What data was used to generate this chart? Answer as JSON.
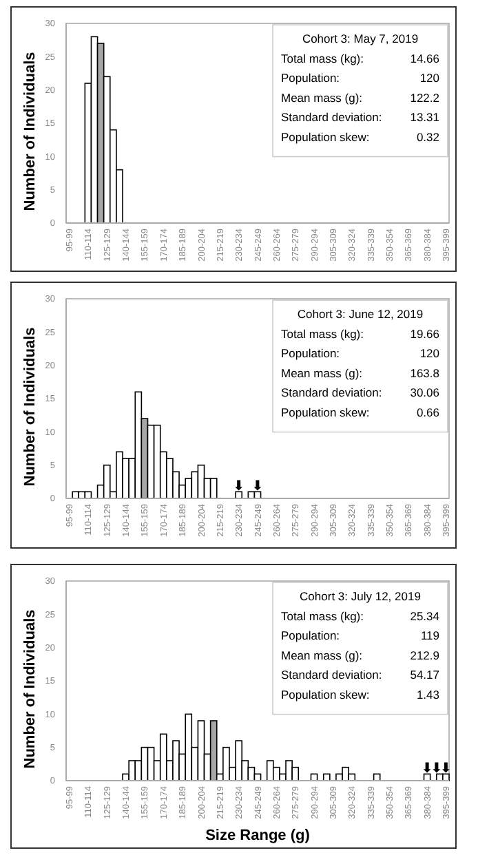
{
  "chart_data": [
    {
      "type": "bar",
      "title": "Cohort 3: May 7, 2019",
      "ylabel": "Number of Individuals",
      "categories": [
        "95-99",
        null,
        null,
        "110-114",
        null,
        null,
        "125-129",
        null,
        null,
        "140-144",
        null,
        null,
        "155-159",
        null,
        null,
        "170-174",
        null,
        null,
        "185-189",
        null,
        null,
        "200-204",
        null,
        null,
        "215-219",
        null,
        null,
        "230-234",
        null,
        null,
        "245-249",
        null,
        null,
        "260-264",
        null,
        null,
        "275-279",
        null,
        null,
        "290-294",
        null,
        null,
        "305-309",
        null,
        null,
        "320-324",
        null,
        null,
        "335-339",
        null,
        null,
        "350-354",
        null,
        null,
        "365-369",
        null,
        null,
        "380-384",
        null,
        null,
        "395-399"
      ],
      "values": [
        0,
        0,
        0,
        21,
        28,
        27,
        22,
        14,
        8,
        0,
        0,
        0,
        0,
        0,
        0,
        0,
        0,
        0,
        0,
        0,
        0,
        0,
        0,
        0,
        0,
        0,
        0,
        0,
        0,
        0,
        0,
        0,
        0,
        0,
        0,
        0,
        0,
        0,
        0,
        0,
        0,
        0,
        0,
        0,
        0,
        0,
        0,
        0,
        0,
        0,
        0,
        0,
        0,
        0,
        0,
        0,
        0,
        0,
        0,
        0,
        0
      ],
      "colors": [
        "#ffffff",
        "#ffffff",
        "#ffffff",
        "#ffffff",
        "#ffffff",
        "#a6a6a6",
        "#ffffff",
        "#ffffff",
        "#ffffff",
        "#ffffff",
        "#ffffff",
        "#ffffff",
        "#ffffff",
        "#ffffff",
        "#ffffff",
        "#ffffff",
        "#ffffff",
        "#ffffff",
        "#ffffff",
        "#ffffff",
        "#ffffff",
        "#ffffff",
        "#ffffff",
        "#ffffff",
        "#ffffff",
        "#ffffff",
        "#ffffff",
        "#ffffff",
        "#ffffff",
        "#ffffff",
        "#ffffff",
        "#ffffff",
        "#ffffff",
        "#ffffff",
        "#ffffff",
        "#ffffff",
        "#ffffff",
        "#ffffff",
        "#ffffff",
        "#ffffff",
        "#ffffff",
        "#ffffff",
        "#ffffff",
        "#ffffff",
        "#ffffff",
        "#ffffff",
        "#ffffff",
        "#ffffff",
        "#ffffff",
        "#ffffff",
        "#ffffff",
        "#ffffff",
        "#ffffff",
        "#ffffff",
        "#ffffff",
        "#ffffff",
        "#ffffff",
        "#ffffff",
        "#ffffff",
        "#ffffff",
        "#ffffff"
      ],
      "ylim": [
        0,
        30
      ],
      "yticks": [
        0,
        5,
        10,
        15,
        20,
        25,
        30
      ],
      "annotations": [
        "Total mass (kg):",
        "14.66",
        "Population:",
        "120",
        "Mean mass (g):",
        "122.2",
        "Standard deviation:",
        "13.31",
        "Population skew:",
        "0.32"
      ]
    },
    {
      "type": "bar",
      "title": "Cohort 3: June 12, 2019",
      "ylabel": "Number of Individuals",
      "categories": [
        "95-99",
        null,
        null,
        "110-114",
        null,
        null,
        "125-129",
        null,
        null,
        "140-144",
        null,
        null,
        "155-159",
        null,
        null,
        "170-174",
        null,
        null,
        "185-189",
        null,
        null,
        "200-204",
        null,
        null,
        "215-219",
        null,
        null,
        "230-234",
        null,
        null,
        "245-249",
        null,
        null,
        "260-264",
        null,
        null,
        "275-279",
        null,
        null,
        "290-294",
        null,
        null,
        "305-309",
        null,
        null,
        "320-324",
        null,
        null,
        "335-339",
        null,
        null,
        "350-354",
        null,
        null,
        "365-369",
        null,
        null,
        "380-384",
        null,
        null,
        "395-399"
      ],
      "values": [
        0,
        1,
        1,
        1,
        0,
        2,
        5,
        1,
        7,
        6,
        6,
        16,
        12,
        11,
        11,
        7,
        6,
        4,
        2,
        3,
        4,
        5,
        3,
        3,
        0,
        0,
        0,
        1,
        0,
        1,
        1,
        0,
        0,
        0,
        0,
        0,
        0,
        0,
        0,
        0,
        0,
        0,
        0,
        0,
        0,
        0,
        0,
        0,
        0,
        0,
        0,
        0,
        0,
        0,
        0,
        0,
        0,
        0,
        0,
        0,
        0
      ],
      "colors": [
        "#ffffff",
        "#ffffff",
        "#ffffff",
        "#ffffff",
        "#ffffff",
        "#ffffff",
        "#ffffff",
        "#ffffff",
        "#ffffff",
        "#ffffff",
        "#ffffff",
        "#ffffff",
        "#a6a6a6",
        "#ffffff",
        "#ffffff",
        "#ffffff",
        "#ffffff",
        "#ffffff",
        "#ffffff",
        "#ffffff",
        "#ffffff",
        "#ffffff",
        "#ffffff",
        "#ffffff",
        "#ffffff",
        "#ffffff",
        "#ffffff",
        "#ffffff",
        "#ffffff",
        "#ffffff",
        "#ffffff",
        "#ffffff",
        "#ffffff",
        "#ffffff",
        "#ffffff",
        "#ffffff",
        "#ffffff",
        "#ffffff",
        "#ffffff",
        "#ffffff",
        "#ffffff",
        "#ffffff",
        "#ffffff",
        "#ffffff",
        "#ffffff",
        "#ffffff",
        "#ffffff",
        "#ffffff",
        "#ffffff",
        "#ffffff",
        "#ffffff",
        "#ffffff",
        "#ffffff",
        "#ffffff",
        "#ffffff",
        "#ffffff",
        "#ffffff",
        "#ffffff",
        "#ffffff",
        "#ffffff",
        "#ffffff"
      ],
      "ylim": [
        0,
        30
      ],
      "yticks": [
        0,
        5,
        10,
        15,
        20,
        25,
        30
      ],
      "annotations": [
        "Total mass (kg):",
        "19.66",
        "Population:",
        "120",
        "Mean mass (g):",
        "163.8",
        "Standard deviation:",
        "30.06",
        "Population skew:",
        "0.66",
        {
          "text": "⬇",
          "x": "230-234",
          "y": 1
        },
        {
          "text": "⬇",
          "x": "245-249",
          "y": 1
        }
      ]
    },
    {
      "type": "bar",
      "title": "Cohort 3: July 12, 2019",
      "xlabel": "Size Range (g)",
      "ylabel": "Number of Individuals",
      "categories": [
        "95-99",
        null,
        null,
        "110-114",
        null,
        null,
        "125-129",
        null,
        null,
        "140-144",
        null,
        null,
        "155-159",
        null,
        null,
        "170-174",
        null,
        null,
        "185-189",
        null,
        null,
        "200-204",
        null,
        null,
        "215-219",
        null,
        null,
        "230-234",
        null,
        null,
        "245-249",
        null,
        null,
        "260-264",
        null,
        null,
        "275-279",
        null,
        null,
        "290-294",
        null,
        null,
        "305-309",
        null,
        null,
        "320-324",
        null,
        null,
        "335-339",
        null,
        null,
        "350-354",
        null,
        null,
        "365-369",
        null,
        null,
        "380-384",
        null,
        null,
        "395-399"
      ],
      "values": [
        0,
        0,
        0,
        0,
        0,
        0,
        0,
        0,
        0,
        1,
        3,
        3,
        5,
        5,
        3,
        7,
        3,
        6,
        4,
        10,
        5,
        9,
        4,
        9,
        1,
        5,
        2,
        6,
        3,
        2,
        1,
        0,
        3,
        2,
        1,
        3,
        2,
        0,
        0,
        1,
        0,
        1,
        0,
        1,
        2,
        1,
        0,
        0,
        0,
        1,
        0,
        0,
        0,
        0,
        0,
        0,
        0,
        1,
        0,
        1,
        1
      ],
      "colors": [
        "#ffffff",
        "#ffffff",
        "#ffffff",
        "#ffffff",
        "#ffffff",
        "#ffffff",
        "#ffffff",
        "#ffffff",
        "#ffffff",
        "#ffffff",
        "#ffffff",
        "#ffffff",
        "#ffffff",
        "#ffffff",
        "#ffffff",
        "#ffffff",
        "#ffffff",
        "#ffffff",
        "#ffffff",
        "#ffffff",
        "#ffffff",
        "#ffffff",
        "#ffffff",
        "#a6a6a6",
        "#ffffff",
        "#ffffff",
        "#ffffff",
        "#ffffff",
        "#ffffff",
        "#ffffff",
        "#ffffff",
        "#ffffff",
        "#ffffff",
        "#ffffff",
        "#ffffff",
        "#ffffff",
        "#ffffff",
        "#ffffff",
        "#ffffff",
        "#ffffff",
        "#ffffff",
        "#ffffff",
        "#ffffff",
        "#ffffff",
        "#ffffff",
        "#ffffff",
        "#ffffff",
        "#ffffff",
        "#ffffff",
        "#ffffff",
        "#ffffff",
        "#ffffff",
        "#ffffff",
        "#ffffff",
        "#ffffff",
        "#ffffff",
        "#ffffff",
        "#ffffff",
        "#ffffff",
        "#ffffff",
        "#ffffff"
      ],
      "ylim": [
        0,
        30
      ],
      "yticks": [
        0,
        5,
        10,
        15,
        20,
        25,
        30
      ],
      "annotations": [
        "Total mass (kg):",
        "25.34",
        "Population:",
        "119",
        "Mean mass (g):",
        "212.9",
        "Standard deviation:",
        "54.17",
        "Population skew:",
        "1.43",
        {
          "text": "⬇",
          "x": "380-384",
          "y": 1
        },
        {
          "text": "⬇",
          "y": 1
        },
        {
          "text": "⬇",
          "x": "395-399",
          "y": 1
        }
      ]
    }
  ]
}
